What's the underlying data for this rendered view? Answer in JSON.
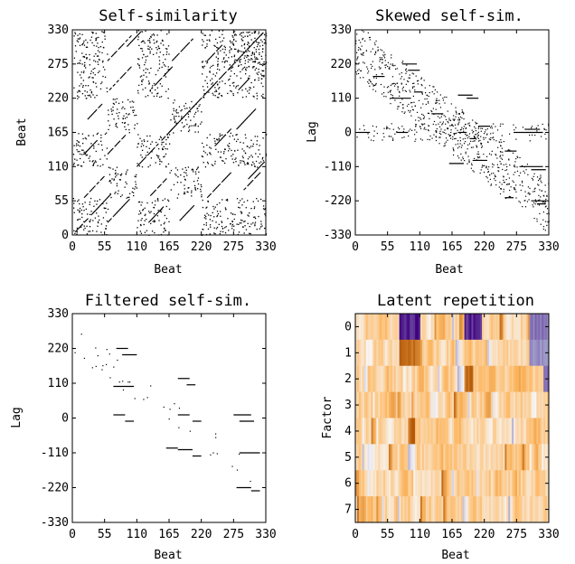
{
  "chart_data": [
    {
      "type": "scatter",
      "title": "Self-similarity",
      "xlabel": "Beat",
      "ylabel": "Beat",
      "xlim": [
        0,
        330
      ],
      "ylim": [
        0,
        330
      ],
      "xticks": [
        "0",
        "55",
        "110",
        "165",
        "220",
        "275",
        "330"
      ],
      "yticks": [
        "0",
        "55",
        "110",
        "165",
        "220",
        "275",
        "330"
      ],
      "description": "binary recurrence matrix: diagonal line segments forming a block (checkerboard) pattern",
      "segments": [
        {
          "x": 5,
          "y": 5,
          "len": 60
        },
        {
          "x": 20,
          "y": 60,
          "len": 40
        },
        {
          "x": 60,
          "y": 20,
          "len": 40
        },
        {
          "x": 110,
          "y": 110,
          "len": 60
        },
        {
          "x": 130,
          "y": 20,
          "len": 25
        },
        {
          "x": 20,
          "y": 130,
          "len": 25
        },
        {
          "x": 165,
          "y": 165,
          "len": 55
        },
        {
          "x": 220,
          "y": 220,
          "len": 60
        },
        {
          "x": 280,
          "y": 280,
          "len": 45
        },
        {
          "x": 280,
          "y": 60,
          "len": 40
        },
        {
          "x": 60,
          "y": 280,
          "len": 40
        },
        {
          "x": 90,
          "y": 300,
          "len": 30
        },
        {
          "x": 300,
          "y": 90,
          "len": 30
        },
        {
          "x": 230,
          "y": 60,
          "len": 40
        },
        {
          "x": 60,
          "y": 230,
          "len": 40
        },
        {
          "x": 180,
          "y": 20,
          "len": 30
        },
        {
          "x": 20,
          "y": 180,
          "len": 30
        },
        {
          "x": 240,
          "y": 140,
          "len": 30
        },
        {
          "x": 140,
          "y": 240,
          "len": 30
        },
        {
          "x": 280,
          "y": 170,
          "len": 35
        },
        {
          "x": 170,
          "y": 280,
          "len": 35
        },
        {
          "x": 60,
          "y": 130,
          "len": 30
        },
        {
          "x": 130,
          "y": 60,
          "len": 30
        },
        {
          "x": 230,
          "y": 280,
          "len": 25
        },
        {
          "x": 280,
          "y": 230,
          "len": 25
        }
      ],
      "grid": false
    },
    {
      "type": "scatter",
      "title": "Skewed self-sim.",
      "xlabel": "Beat",
      "ylabel": "Lag",
      "xlim": [
        0,
        330
      ],
      "ylim": [
        -330,
        330
      ],
      "xticks": [
        "0",
        "55",
        "110",
        "165",
        "220",
        "275",
        "330"
      ],
      "yticks": [
        "-330",
        "-220",
        "-110",
        "0",
        "110",
        "220",
        "330"
      ],
      "description": "lag representation of the self-similarity matrix; horizontal runs of points",
      "segments": [
        {
          "x": 30,
          "lag": 180,
          "len": 20
        },
        {
          "x": 80,
          "lag": 220,
          "len": 25
        },
        {
          "x": 90,
          "lag": 200,
          "len": 20
        },
        {
          "x": 60,
          "lag": 110,
          "len": 35
        },
        {
          "x": 5,
          "lag": 0,
          "len": 20
        },
        {
          "x": 70,
          "lag": 0,
          "len": 20
        },
        {
          "x": 100,
          "lag": 130,
          "len": 15
        },
        {
          "x": 130,
          "lag": 60,
          "len": 20
        },
        {
          "x": 175,
          "lag": 120,
          "len": 25
        },
        {
          "x": 190,
          "lag": 110,
          "len": 20
        },
        {
          "x": 175,
          "lag": 0,
          "len": 15
        },
        {
          "x": 195,
          "lag": -20,
          "len": 10
        },
        {
          "x": 160,
          "lag": -100,
          "len": 25
        },
        {
          "x": 200,
          "lag": -90,
          "len": 25
        },
        {
          "x": 210,
          "lag": 20,
          "len": 20
        },
        {
          "x": 255,
          "lag": -60,
          "len": 20
        },
        {
          "x": 270,
          "lag": 0,
          "len": 20
        },
        {
          "x": 290,
          "lag": 0,
          "len": 30
        },
        {
          "x": 290,
          "lag": 10,
          "len": 25
        },
        {
          "x": 280,
          "lag": -110,
          "len": 40
        },
        {
          "x": 300,
          "lag": -120,
          "len": 25
        },
        {
          "x": 255,
          "lag": -210,
          "len": 15
        },
        {
          "x": 300,
          "lag": -220,
          "len": 25
        },
        {
          "x": 310,
          "lag": -230,
          "len": 15
        }
      ],
      "grid": false
    },
    {
      "type": "scatter",
      "title": "Filtered self-sim.",
      "xlabel": "Beat",
      "ylabel": "Lag",
      "xlim": [
        0,
        330
      ],
      "ylim": [
        -330,
        330
      ],
      "xticks": [
        "0",
        "55",
        "110",
        "165",
        "220",
        "275",
        "330"
      ],
      "yticks": [
        "-330",
        "-220",
        "-110",
        "0",
        "110",
        "220",
        "330"
      ],
      "description": "filtered lag matrix; sparse horizontal segments",
      "segments": [
        {
          "x": 75,
          "lag": 220,
          "len": 20
        },
        {
          "x": 85,
          "lag": 200,
          "len": 25
        },
        {
          "x": 70,
          "lag": 100,
          "len": 35
        },
        {
          "x": 70,
          "lag": 10,
          "len": 20
        },
        {
          "x": 90,
          "lag": -10,
          "len": 15
        },
        {
          "x": 180,
          "lag": 125,
          "len": 20
        },
        {
          "x": 195,
          "lag": 105,
          "len": 15
        },
        {
          "x": 180,
          "lag": 10,
          "len": 20
        },
        {
          "x": 205,
          "lag": -10,
          "len": 15
        },
        {
          "x": 160,
          "lag": -95,
          "len": 20
        },
        {
          "x": 180,
          "lag": -100,
          "len": 25
        },
        {
          "x": 205,
          "lag": -120,
          "len": 15
        },
        {
          "x": 275,
          "lag": 10,
          "len": 30
        },
        {
          "x": 285,
          "lag": -10,
          "len": 25
        },
        {
          "x": 285,
          "lag": -110,
          "len": 35
        },
        {
          "x": 280,
          "lag": -220,
          "len": 25
        },
        {
          "x": 305,
          "lag": -230,
          "len": 15
        }
      ],
      "grid": false
    },
    {
      "type": "heatmap",
      "title": "Latent repetition",
      "xlabel": "Beat",
      "ylabel": "Factor",
      "xlim": [
        0,
        330
      ],
      "xticks": [
        "0",
        "55",
        "110",
        "165",
        "220",
        "275",
        "330"
      ],
      "yticks": [
        "0",
        "1",
        "2",
        "3",
        "4",
        "5",
        "6",
        "7"
      ],
      "rows": 8,
      "colors": {
        "neg_strong": "#3f007d",
        "neg_mid": "#9e9ac8",
        "zero": "#f7f7f7",
        "pos_mid": "#fdb863",
        "pos_strong": "#b35806"
      },
      "description": "diverging purple-white-orange heatmap of 8 latent factors across beats",
      "strong_features": [
        {
          "row": 0,
          "x0": 75,
          "x1": 110,
          "value": -1.0
        },
        {
          "row": 0,
          "x0": 185,
          "x1": 215,
          "value": -1.0
        },
        {
          "row": 0,
          "x0": 295,
          "x1": 335,
          "value": -0.7
        },
        {
          "row": 1,
          "x0": 75,
          "x1": 110,
          "value": 1.0
        },
        {
          "row": 1,
          "x0": 295,
          "x1": 335,
          "value": -0.6
        },
        {
          "row": 2,
          "x0": 185,
          "x1": 200,
          "value": 1.0
        },
        {
          "row": 2,
          "x0": 320,
          "x1": 330,
          "value": -0.8
        },
        {
          "row": 4,
          "x0": 90,
          "x1": 100,
          "value": 1.0
        }
      ]
    }
  ]
}
